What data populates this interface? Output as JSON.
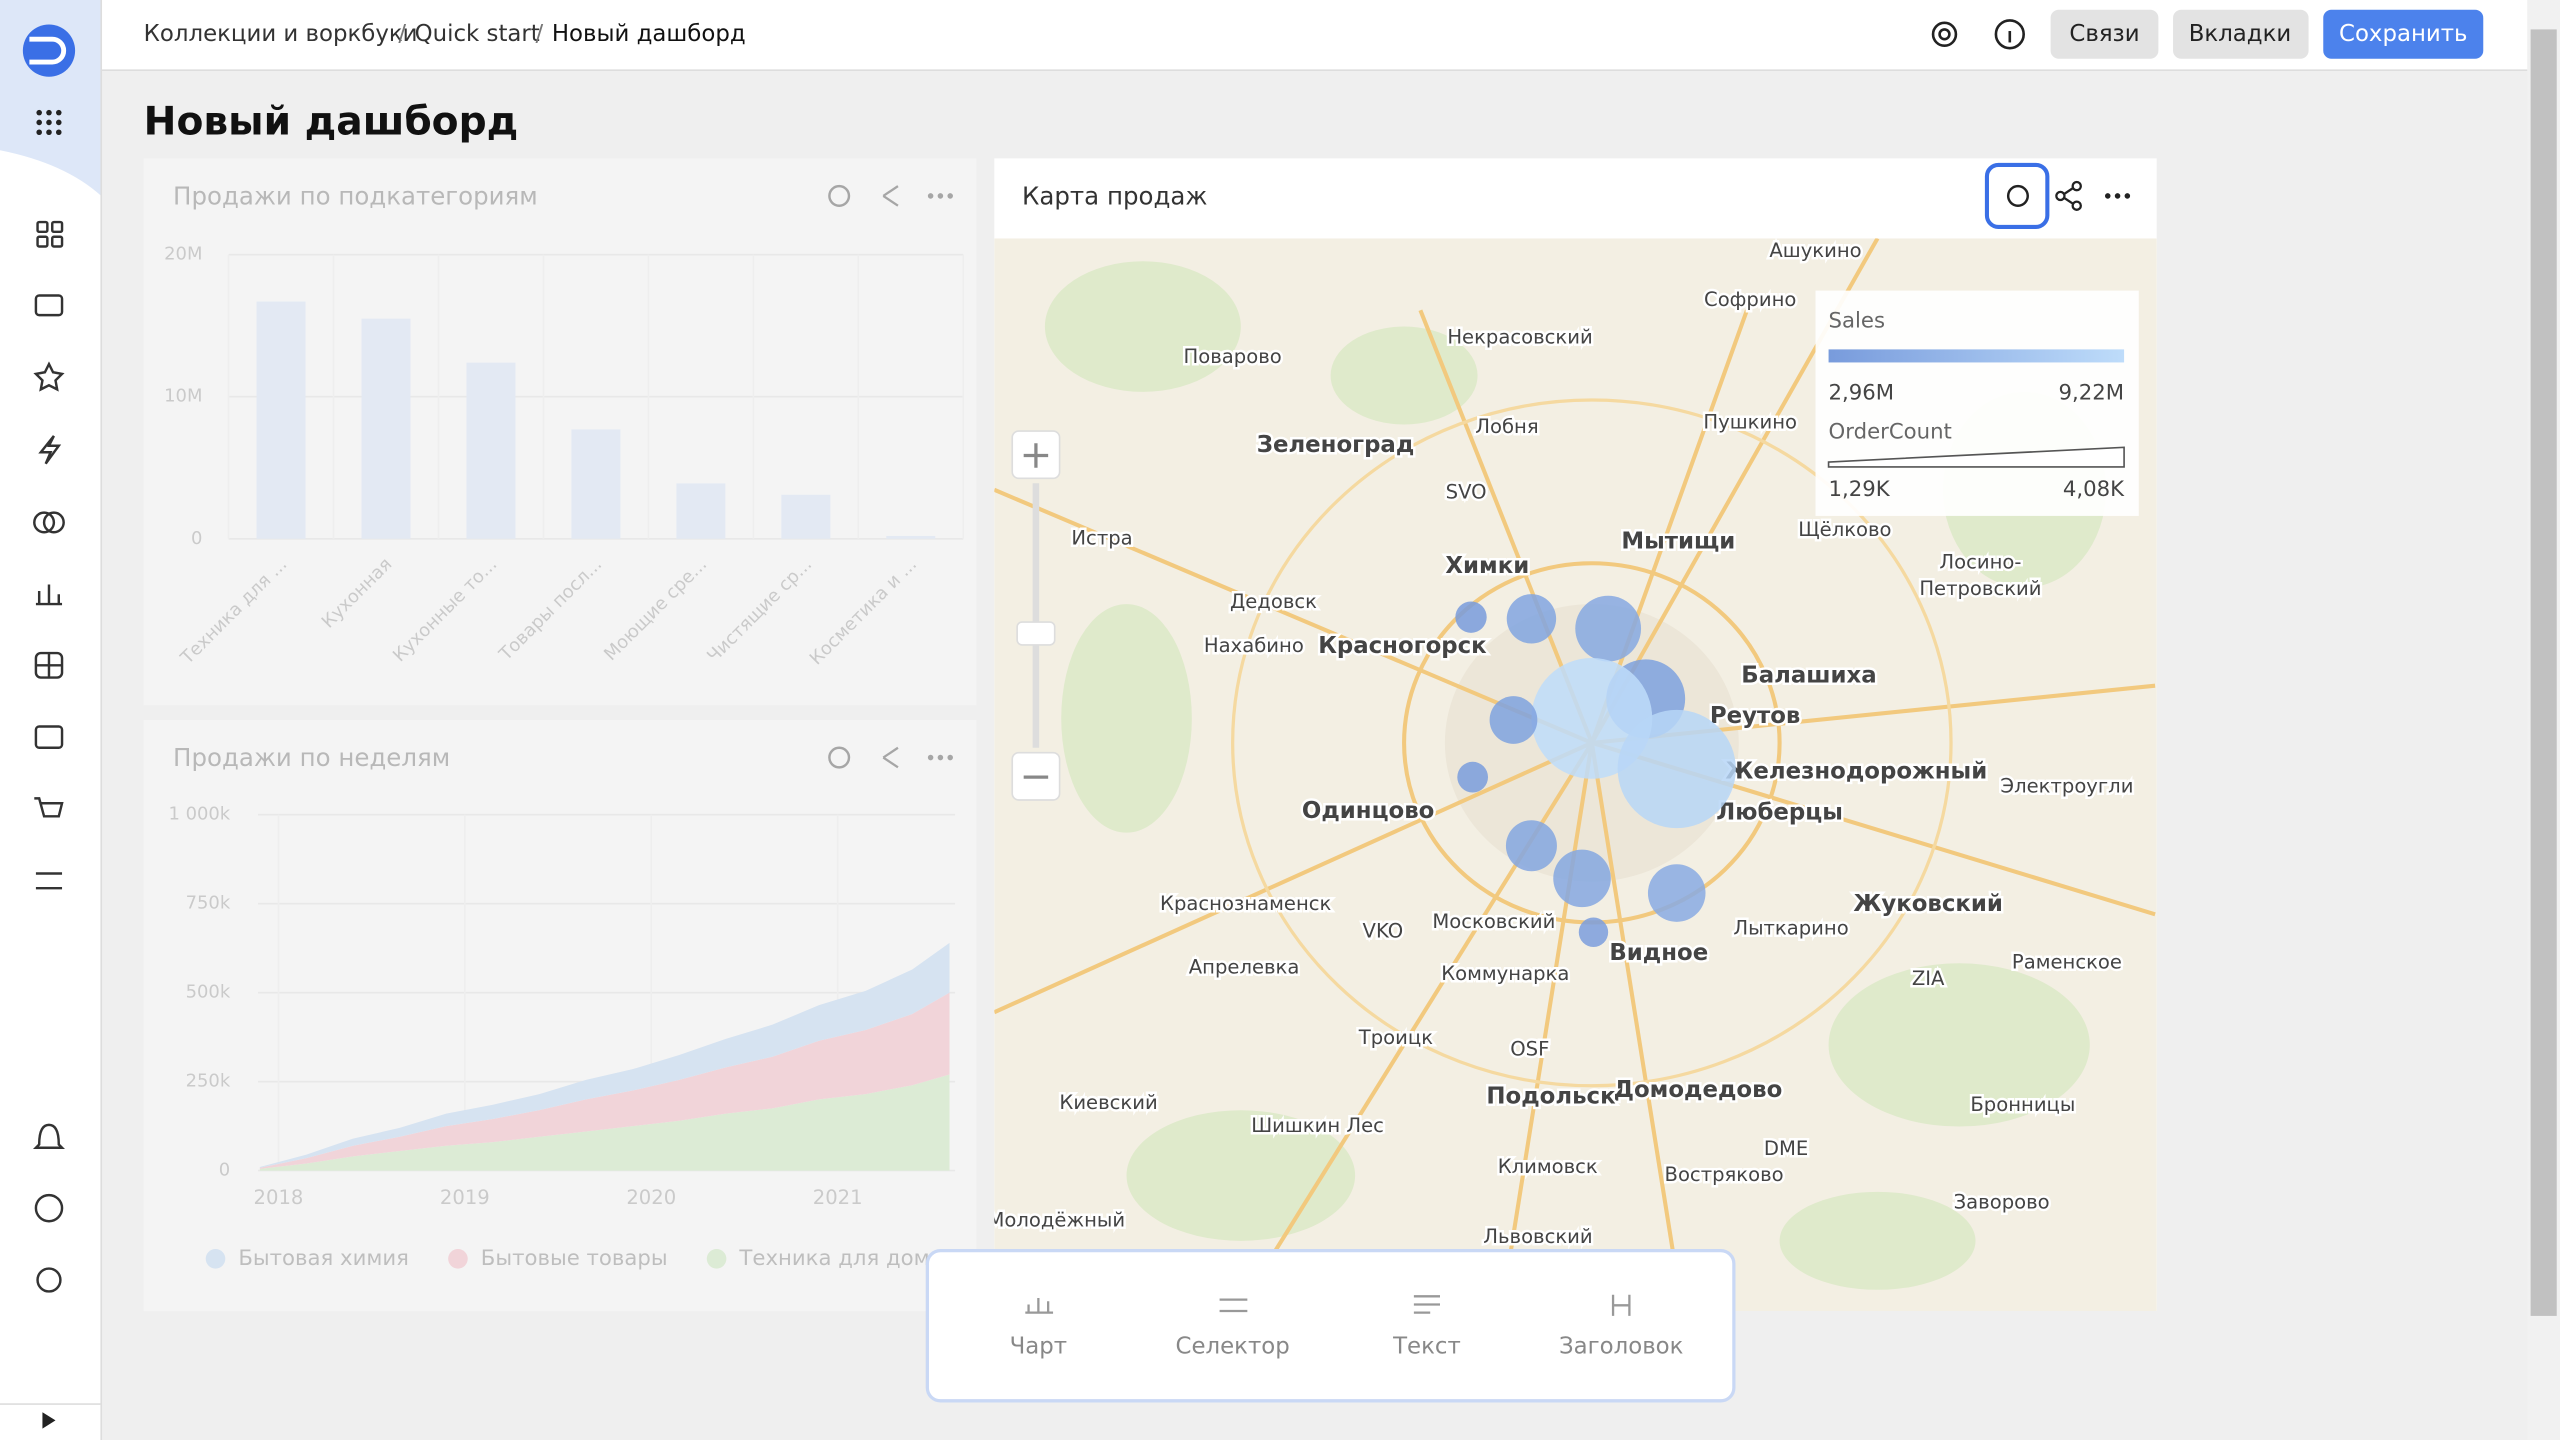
{
  "breadcrumbs": [
    "Коллекции и воркбуки",
    "Quick start",
    "Новый дашборд"
  ],
  "header_buttons": [
    "Связи",
    "Вкладки",
    "Сохранить"
  ],
  "title": "Новый дашборд",
  "widgets": [
    {
      "title": "Продажи по подкатегориям",
      "chart_data": {
        "type": "bar",
        "categories": [
          "Техника для ...",
          "Кухонная",
          "Кухонные то...",
          "Товары посл...",
          "Моющие сре...",
          "Чистящие ср...",
          "Косметика и ..."
        ],
        "values": [
          16700000,
          15500000,
          12400000,
          7700000,
          3900000,
          3100000,
          200000
        ],
        "color": "#cfe0fb",
        "ylim": [
          0,
          20000000
        ],
        "yticks": [
          {
            "value": 0,
            "label": "0"
          },
          {
            "value": 10000000,
            "label": "10M"
          },
          {
            "value": 20000000,
            "label": "20M"
          }
        ],
        "grid": true
      }
    },
    {
      "title": "Продажи по неделям",
      "chart_data": {
        "type": "stacked-area",
        "x": [
          2017.9,
          2018.15,
          2018.4,
          2018.65,
          2018.9,
          2019.15,
          2019.4,
          2019.65,
          2019.9,
          2020.15,
          2020.4,
          2020.65,
          2020.9,
          2021.15,
          2021.4,
          2021.6
        ],
        "series": [
          {
            "name": "Техника для дома",
            "color": "#b9e4a6",
            "values": [
              5000,
              20000,
              40000,
              55000,
              70000,
              80000,
              95000,
              110000,
              125000,
              140000,
              160000,
              175000,
              200000,
              215000,
              240000,
              270000
            ]
          },
          {
            "name": "Бытовые товары",
            "color": "#f7a3b3",
            "values": [
              3000,
              15000,
              30000,
              40000,
              55000,
              65000,
              75000,
              90000,
              100000,
              115000,
              130000,
              145000,
              165000,
              180000,
              200000,
              230000
            ]
          },
          {
            "name": "Бытовая химия",
            "color": "#a9cdf6",
            "values": [
              2000,
              10000,
              20000,
              25000,
              35000,
              40000,
              45000,
              55000,
              60000,
              70000,
              80000,
              90000,
              100000,
              110000,
              125000,
              140000
            ]
          }
        ],
        "legend_order": [
          2,
          1,
          0
        ],
        "xlim": [
          2017.89,
          2021.63
        ],
        "xticks": [
          2018,
          2019,
          2020,
          2021
        ],
        "ylim": [
          0,
          1000000
        ],
        "yticks": [
          {
            "value": 0,
            "label": "0"
          },
          {
            "value": 250000,
            "label": "250k"
          },
          {
            "value": 500000,
            "label": "500k"
          },
          {
            "value": 750000,
            "label": "750k"
          },
          {
            "value": 1000000,
            "label": "1 000k"
          }
        ],
        "grid": true
      }
    },
    {
      "title": "Карта продаж",
      "legend": {
        "color_title": "Sales",
        "color_min": {
          "value": 2960000,
          "label": "2,96M"
        },
        "color_max": {
          "value": 9220000,
          "label": "9,22M"
        },
        "size_title": "OrderCount",
        "size_min": {
          "value": 1290,
          "label": "1,29K"
        },
        "size_max": {
          "value": 4080,
          "label": "4,08K"
        }
      },
      "points": [
        {
          "sales": 2960000,
          "orders": 1350
        },
        {
          "sales": 3800000,
          "orders": 1900
        },
        {
          "sales": 4200000,
          "orders": 2400
        },
        {
          "sales": 3500000,
          "orders": 2800
        },
        {
          "sales": 9220000,
          "orders": 4080
        },
        {
          "sales": 8600000,
          "orders": 4000
        },
        {
          "sales": 3600000,
          "orders": 1850
        },
        {
          "sales": 3100000,
          "orders": 1330
        },
        {
          "sales": 4000000,
          "orders": 1950
        },
        {
          "sales": 4100000,
          "orders": 2150
        },
        {
          "sales": 4400000,
          "orders": 2150
        },
        {
          "sales": 3200000,
          "orders": 1290
        }
      ],
      "map_labels": [
        "Ашукино",
        "Софрино",
        "Некрасовский",
        "Поварово",
        "Лобня",
        "Зеленоград",
        "Пушкино",
        "SVO",
        "Истра",
        "Мытищи",
        "Щёлково",
        "Химки",
        "Лосино-",
        "Петровский",
        "Дедовск",
        "Нахабино",
        "Красногорск",
        "Балашиха",
        "Реутов",
        "Железнодорожный",
        "Электроугли",
        "Одинцово",
        "Люберцы",
        "Краснознаменск",
        "Жуковский",
        "VKO",
        "Московский",
        "Лыткарино",
        "Видное",
        "Коммунарка",
        "Апрелевка",
        "Раменское",
        "ZIA",
        "Троицк",
        "OSF",
        "Домодедово",
        "Подольск",
        "Киевский",
        "Шишкин Лес",
        "Бронницы",
        "DME",
        "Климовск",
        "Востряково",
        "Молодёжный",
        "Заворово",
        "Львовский"
      ]
    }
  ],
  "toolbar": [
    "Чарт",
    "Селектор",
    "Текст",
    "Заголовок"
  ]
}
